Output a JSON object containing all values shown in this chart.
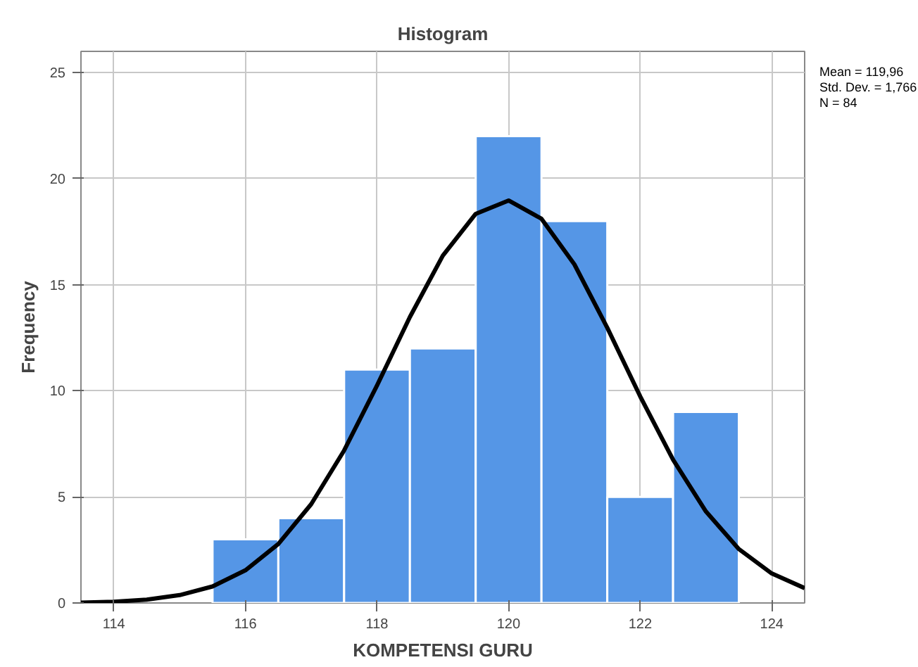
{
  "chart_data": {
    "type": "histogram",
    "title": "Histogram",
    "xlabel": "KOMPETENSI GURU",
    "ylabel": "Frequency",
    "xlim": [
      113.5,
      124.5
    ],
    "xticks": [
      114,
      116,
      118,
      120,
      122,
      124
    ],
    "ylim": [
      0,
      26
    ],
    "yticks": [
      0,
      5,
      10,
      15,
      20,
      25
    ],
    "grid": true,
    "annotations": [
      "Mean = 119,96",
      "Std. Dev. = 1,766",
      "N = 84"
    ],
    "series": [
      {
        "color": "#5596e6",
        "bins": [
          115.5,
          116.5,
          117.5,
          118.5,
          119.5,
          120.5,
          121.5,
          122.5,
          123.5
        ],
        "values": [
          3,
          4,
          11,
          12,
          22,
          18,
          5,
          9
        ]
      },
      {
        "type": "line",
        "color": "#000000",
        "x": [
          113.5,
          114,
          114.5,
          115,
          115.5,
          116,
          116.5,
          117,
          117.5,
          118,
          118.5,
          119,
          119.5,
          120,
          120.5,
          121,
          121.5,
          122,
          122.5,
          123,
          123.5,
          124,
          124.5
        ],
        "values": [
          0.02,
          0.06,
          0.16,
          0.37,
          0.78,
          1.54,
          2.78,
          4.66,
          7.19,
          10.25,
          13.48,
          16.37,
          18.34,
          18.97,
          18.11,
          15.96,
          12.97,
          9.74,
          6.75,
          4.31,
          2.54,
          1.39,
          0.7
        ]
      }
    ]
  }
}
